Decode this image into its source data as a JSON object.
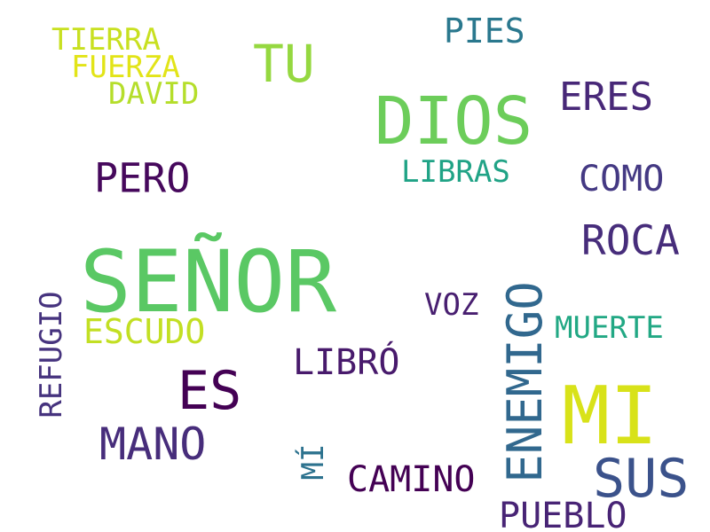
{
  "words": {
    "senor": {
      "text": "SEÑOR",
      "color": "#5ac864"
    },
    "dios": {
      "text": "DIOS",
      "color": "#6ccd5a"
    },
    "mi": {
      "text": "MI",
      "color": "#d8e219"
    },
    "es": {
      "text": "ES",
      "color": "#440154"
    },
    "sus": {
      "text": "SUS",
      "color": "#3b528b"
    },
    "mano": {
      "text": "MANO",
      "color": "#472d7b"
    },
    "tu": {
      "text": "TU",
      "color": "#95d840"
    },
    "roca": {
      "text": "ROCA",
      "color": "#472d7b"
    },
    "eres": {
      "text": "ERES",
      "color": "#482878"
    },
    "pero": {
      "text": "PERO",
      "color": "#46085c"
    },
    "camino": {
      "text": "CAMINO",
      "color": "#440154"
    },
    "libro": {
      "text": "LIBRÓ",
      "color": "#481a6c"
    },
    "pueblo": {
      "text": "PUEBLO",
      "color": "#482475"
    },
    "como": {
      "text": "COMO",
      "color": "#443983"
    },
    "pies": {
      "text": "PIES",
      "color": "#2a788e"
    },
    "escudo": {
      "text": "ESCUDO",
      "color": "#c2df23"
    },
    "libras": {
      "text": "LIBRAS",
      "color": "#20a386"
    },
    "voz": {
      "text": "VOZ",
      "color": "#481f70"
    },
    "muerte": {
      "text": "MUERTE",
      "color": "#22a884"
    },
    "tierra": {
      "text": "TIERRA",
      "color": "#c8e020"
    },
    "fuerza": {
      "text": "FUERZA",
      "color": "#e2e418"
    },
    "david": {
      "text": "DAVID",
      "color": "#b5de2b"
    },
    "enemigo": {
      "text": "ENEMIGO",
      "color": "#31688e"
    },
    "refugio": {
      "text": "REFUGIO",
      "color": "#46337e"
    },
    "mi2": {
      "text": "MÍ",
      "color": "#2c728e"
    }
  }
}
